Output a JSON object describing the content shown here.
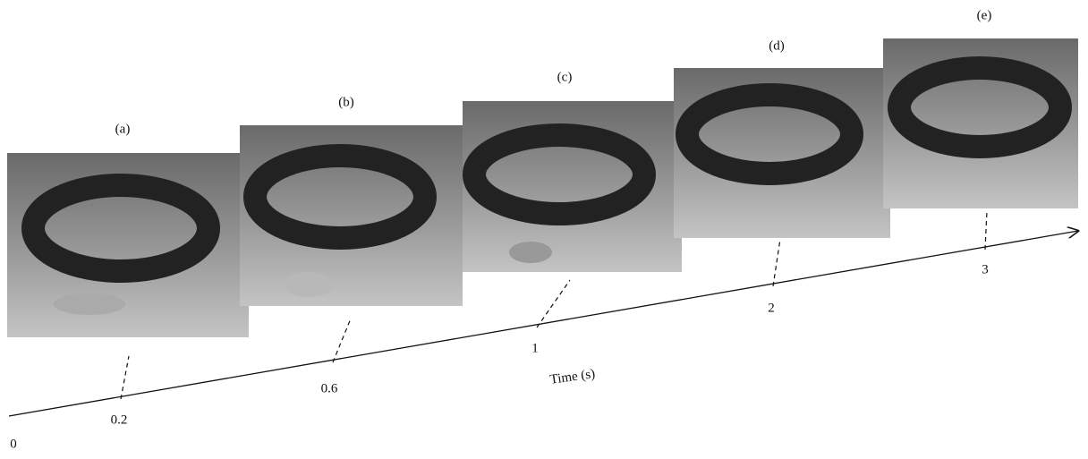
{
  "panels": [
    {
      "label": "(a)"
    },
    {
      "label": "(b)"
    },
    {
      "label": "(c)"
    },
    {
      "label": "(d)"
    },
    {
      "label": "(e)"
    }
  ],
  "axis": {
    "label": "Time (s)",
    "origin": "0",
    "ticks": [
      "0.2",
      "0.6",
      "1",
      "2",
      "3"
    ]
  }
}
